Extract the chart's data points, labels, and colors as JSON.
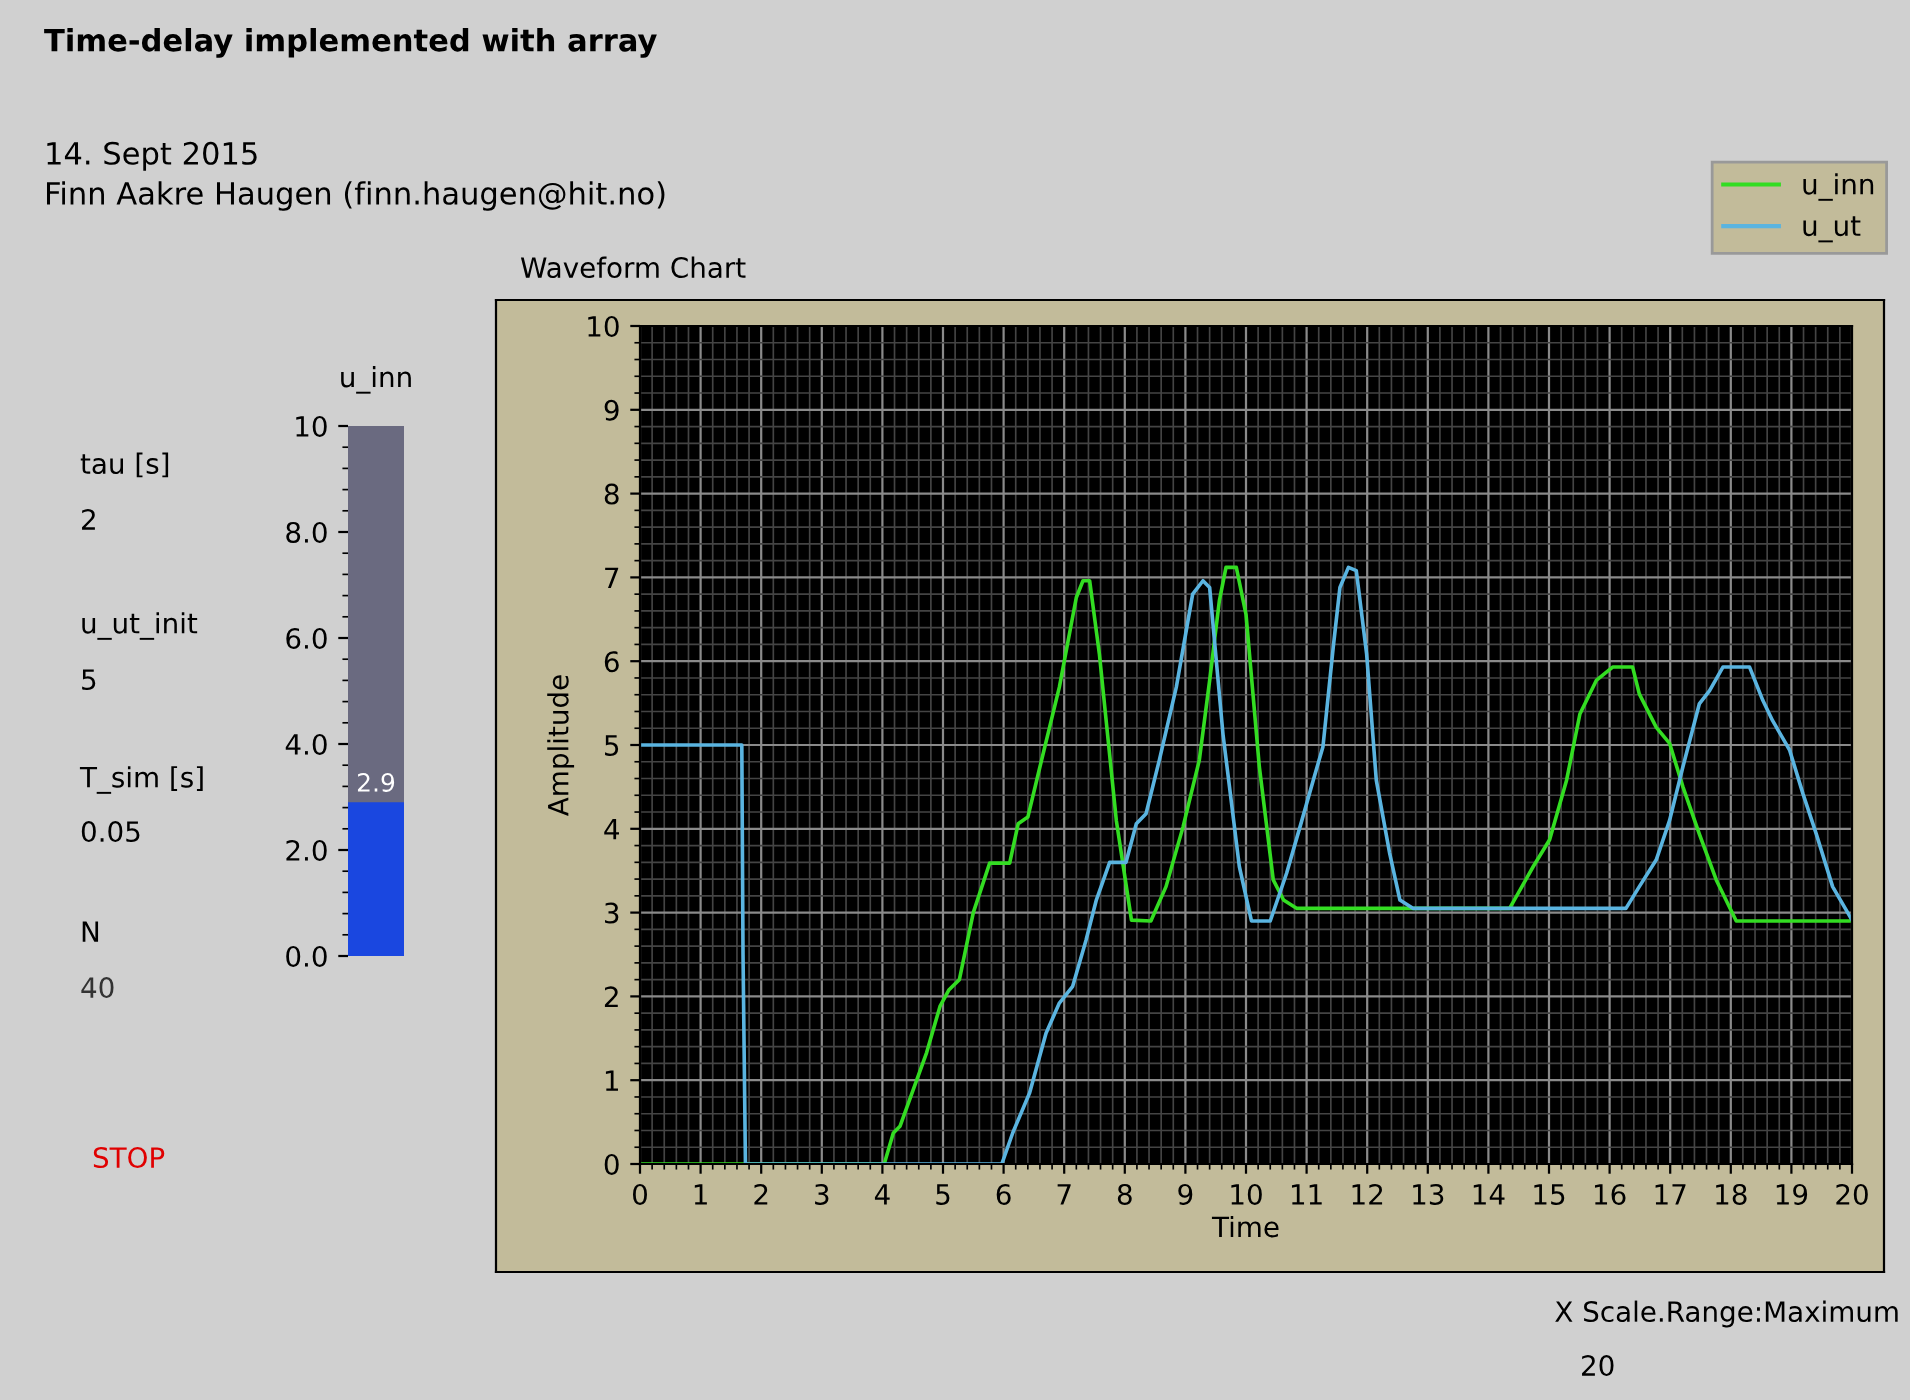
{
  "chart_data": [
    {
      "type": "other",
      "title": "Time-delay implemented with array",
      "annotations": [
        "14. Sept 2015",
        "Finn Aakre Haugen (finn.haugen@hit.no)",
        "tau [s]",
        "2",
        "u_ut_init",
        "5",
        "T_sim [s]",
        "0.05",
        "N",
        "40",
        "STOP",
        "X Scale.Range:Maximum",
        "20"
      ]
    },
    {
      "type": "bar",
      "title": "u_inn",
      "categories": [
        null
      ],
      "values": [
        2.9
      ],
      "color": "#1a47e0",
      "value_labels": [
        "2.9"
      ],
      "ylim": [
        0,
        10
      ],
      "yticks": [
        {
          "value": 0,
          "label": "0.0"
        },
        {
          "value": 2,
          "label": "2.0"
        },
        {
          "value": 4,
          "label": "4.0"
        },
        {
          "value": 6,
          "label": "6.0"
        },
        {
          "value": 8,
          "label": "8.0"
        },
        10
      ],
      "tick_labels": "y"
    },
    {
      "type": "line",
      "title": "Waveform Chart",
      "xlabel": "Time",
      "ylabel": "Amplitude",
      "xlim": [
        0,
        20
      ],
      "ylim": [
        0,
        10
      ],
      "xticks": [
        0,
        1,
        2,
        3,
        4,
        5,
        6,
        7,
        8,
        9,
        10,
        11,
        12,
        13,
        14,
        15,
        16,
        17,
        18,
        19,
        20
      ],
      "yticks": [
        0,
        1,
        2,
        3,
        4,
        5,
        6,
        7,
        8,
        9,
        10
      ],
      "grid": true,
      "legend": "top right",
      "marker": "none",
      "line_style": "solid",
      "series": [
        {
          "name": "u_inn",
          "color": "#33dd22",
          "x": [
            0,
            4.03,
            4.18,
            4.29,
            4.73,
            4.95,
            5.1,
            5.27,
            5.5,
            5.77,
            6.1,
            6.24,
            6.4,
            6.6,
            6.92,
            7.2,
            7.31,
            7.42,
            7.58,
            7.86,
            8.11,
            8.43,
            8.68,
            8.96,
            9.23,
            9.4,
            9.56,
            9.67,
            9.84,
            10.0,
            10.22,
            10.45,
            10.62,
            10.84,
            14.35,
            14.74,
            15.01,
            15.29,
            15.51,
            15.78,
            16.05,
            16.38,
            16.49,
            16.77,
            16.99,
            17.21,
            17.48,
            17.76,
            18.09,
            20.0
          ],
          "values": [
            0,
            0,
            0.37,
            0.45,
            1.33,
            1.88,
            2.08,
            2.2,
            3.0,
            3.59,
            3.59,
            4.06,
            4.14,
            4.74,
            5.69,
            6.76,
            6.96,
            6.96,
            6.09,
            4.1,
            2.91,
            2.9,
            3.31,
            4.02,
            4.82,
            5.77,
            6.72,
            7.12,
            7.12,
            6.56,
            4.74,
            3.39,
            3.15,
            3.05,
            3.05,
            3.55,
            3.87,
            4.58,
            5.37,
            5.77,
            5.93,
            5.93,
            5.61,
            5.21,
            5.02,
            4.5,
            3.94,
            3.39,
            2.9,
            2.9
          ]
        },
        {
          "name": "u_ut",
          "color": "#5ab4e0",
          "x": [
            0,
            1.68,
            1.7,
            1.74,
            5.97,
            6.15,
            6.43,
            6.7,
            6.92,
            7.14,
            7.36,
            7.53,
            7.75,
            8.02,
            8.19,
            8.35,
            8.57,
            8.85,
            9.12,
            9.29,
            9.4,
            9.62,
            9.89,
            10.09,
            10.4,
            10.67,
            10.89,
            11.11,
            11.27,
            11.44,
            11.55,
            11.69,
            11.82,
            11.99,
            12.15,
            12.37,
            12.54,
            12.76,
            16.27,
            16.49,
            16.77,
            16.99,
            17.21,
            17.48,
            17.65,
            17.87,
            18.31,
            18.53,
            18.69,
            18.97,
            19.19,
            19.41,
            19.68,
            20.0
          ],
          "values": [
            5,
            5,
            2.5,
            0,
            0,
            0.37,
            0.85,
            1.56,
            1.92,
            2.12,
            2.67,
            3.15,
            3.6,
            3.6,
            4.06,
            4.18,
            4.82,
            5.69,
            6.8,
            6.96,
            6.88,
            5.13,
            3.55,
            2.9,
            2.9,
            3.47,
            4.02,
            4.58,
            4.98,
            6.17,
            6.88,
            7.12,
            7.08,
            6.09,
            4.58,
            3.71,
            3.15,
            3.05,
            3.05,
            3.31,
            3.63,
            4.1,
            4.74,
            5.49,
            5.65,
            5.93,
            5.93,
            5.53,
            5.29,
            4.94,
            4.42,
            3.94,
            3.31,
            2.91
          ]
        }
      ]
    }
  ]
}
